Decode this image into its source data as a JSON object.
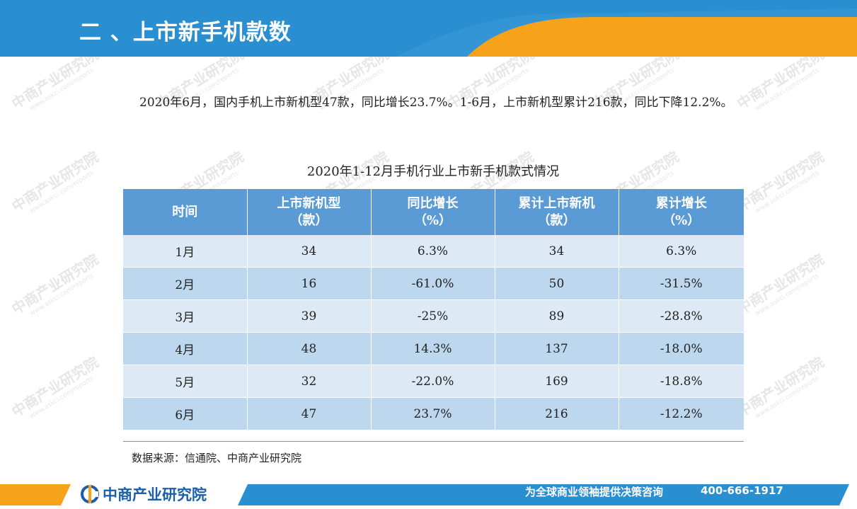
{
  "header": {
    "title": "二 、上市新手机款数",
    "colors": {
      "primary": "#2a8fd0",
      "accent": "#f7a21b"
    }
  },
  "watermark": {
    "brand": "中商产业研究院",
    "url": "www.askci.com/reports"
  },
  "intro": {
    "text": "2020年6月，国内手机上市新机型47款，同比增长23.7%。1-6月，上市新机型累计216款，同比下降12.2%。"
  },
  "table": {
    "title": "2020年1-12月手机行业上市新手机款式情况",
    "headers": [
      {
        "line1": "时间",
        "line2": ""
      },
      {
        "line1": "上市新机型",
        "line2": "（款）"
      },
      {
        "line1": "同比增长",
        "line2": "（%）"
      },
      {
        "line1": "累计上市新机",
        "line2": "（款）"
      },
      {
        "line1": "累计增长",
        "line2": "（%）"
      }
    ],
    "rows": [
      [
        "1月",
        "34",
        "6.3%",
        "34",
        "6.3%"
      ],
      [
        "2月",
        "16",
        "-61.0%",
        "50",
        "-31.5%"
      ],
      [
        "3月",
        "39",
        "-25%",
        "89",
        "-28.8%"
      ],
      [
        "4月",
        "48",
        "14.3%",
        "137",
        "-18.0%"
      ],
      [
        "5月",
        "32",
        "-22.0%",
        "169",
        "-18.8%"
      ],
      [
        "6月",
        "47",
        "23.7%",
        "216",
        "-12.2%"
      ]
    ]
  },
  "source": {
    "text": "数据来源：信通院、中商产业研究院"
  },
  "footer": {
    "brand": "中商产业研究院",
    "slogan": "为全球商业领袖提供决策咨询",
    "phone": "400-666-1917",
    "logo_icon": "askci-logo-icon"
  }
}
